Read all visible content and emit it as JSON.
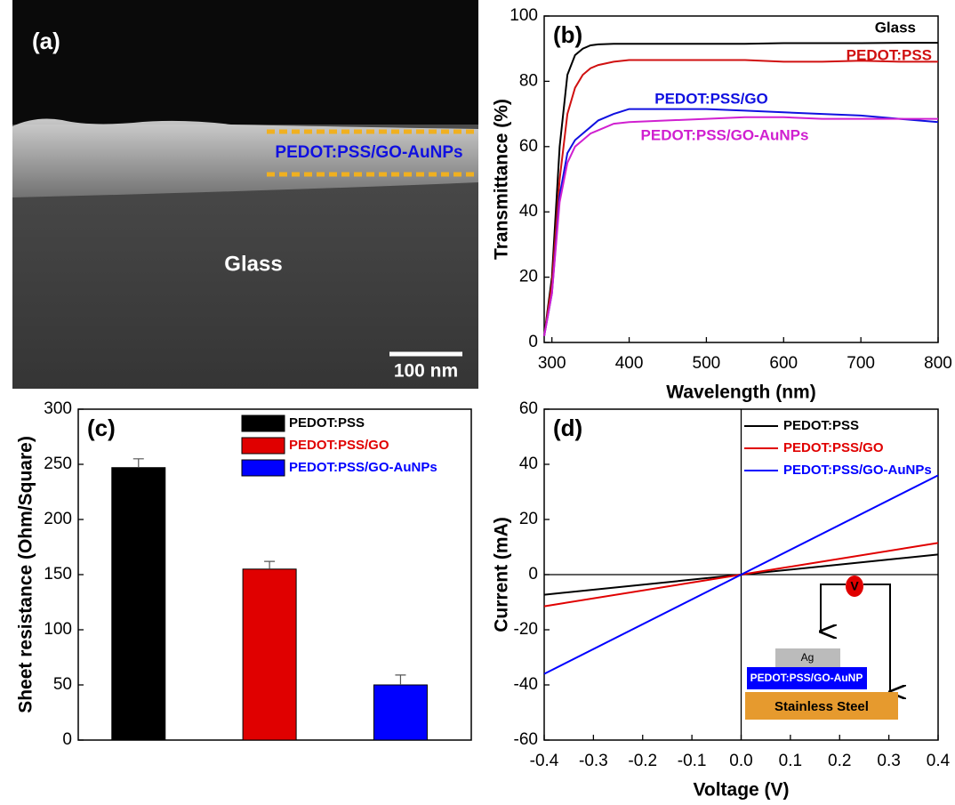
{
  "chart_data": [
    {
      "type": "image",
      "label": "(a)",
      "annotations": [
        {
          "text": "PEDOT:PSS/GO-AuNPs",
          "color": "#1010e0"
        },
        {
          "text": "Glass",
          "color": "#ffffff"
        }
      ],
      "scale_bar": "100 nm"
    },
    {
      "type": "line",
      "label": "(b)",
      "xlabel": "Wavelength (nm)",
      "ylabel": "Transmittance (%)",
      "xlim": [
        290,
        800
      ],
      "ylim": [
        0,
        100
      ],
      "xticks": [
        300,
        400,
        500,
        600,
        700,
        800
      ],
      "yticks": [
        0,
        20,
        40,
        60,
        80,
        100
      ],
      "x": [
        290,
        300,
        310,
        320,
        330,
        340,
        350,
        360,
        380,
        400,
        450,
        500,
        550,
        600,
        650,
        700,
        750,
        800
      ],
      "series": [
        {
          "name": "Glass",
          "color": "#000000",
          "values": [
            2,
            20,
            60,
            82,
            88,
            90,
            91,
            91.3,
            91.5,
            91.5,
            91.5,
            91.5,
            91.5,
            91.7,
            91.7,
            91.7,
            91.8,
            91.8
          ]
        },
        {
          "name": "PEDOT:PSS",
          "color": "#d01010",
          "values": [
            2,
            18,
            50,
            70,
            78,
            82,
            84,
            85,
            86,
            86.5,
            86.5,
            86.5,
            86.5,
            86,
            86,
            86.3,
            86,
            86
          ]
        },
        {
          "name": "PEDOT:PSS/GO",
          "color": "#1010e0",
          "values": [
            2,
            15,
            45,
            58,
            62,
            64,
            66,
            68,
            70,
            71.5,
            71.5,
            71.5,
            71,
            70.5,
            70,
            69.5,
            68.5,
            67.5
          ]
        },
        {
          "name": "PEDOT:PSS/GO-AuNPs",
          "color": "#d020d0",
          "values": [
            2,
            15,
            43,
            55,
            60,
            62,
            64,
            65,
            67,
            67.5,
            68,
            68.5,
            69,
            69,
            68.5,
            68.5,
            68.5,
            68.5
          ]
        }
      ]
    },
    {
      "type": "bar",
      "label": "(c)",
      "ylabel": "Sheet resistance (Ohm/Square)",
      "ylim": [
        0,
        300
      ],
      "yticks": [
        0,
        50,
        100,
        150,
        200,
        250,
        300
      ],
      "categories": [
        "PEDOT:PSS",
        "PEDOT:PSS/GO",
        "PEDOT:PSS/GO-AuNPs"
      ],
      "values": [
        247,
        155,
        50
      ],
      "errors": [
        8,
        7,
        9
      ],
      "colors": [
        "#000000",
        "#e00000",
        "#0000ff"
      ]
    },
    {
      "type": "line",
      "label": "(d)",
      "xlabel": "Voltage (V)",
      "ylabel": "Current (mA)",
      "xlim": [
        -0.4,
        0.4
      ],
      "ylim": [
        -60,
        60
      ],
      "xticks": [
        -0.4,
        -0.3,
        -0.2,
        -0.1,
        {
          "value": 0,
          "label": "0.0"
        },
        0.1,
        0.2,
        0.3,
        0.4
      ],
      "yticks": [
        -60,
        -40,
        -20,
        0,
        20,
        40,
        60
      ],
      "x": [
        -0.4,
        0,
        0.4
      ],
      "series": [
        {
          "name": "PEDOT:PSS",
          "color": "#000000",
          "values": [
            -7.3,
            0,
            7.3
          ]
        },
        {
          "name": "PEDOT:PSS/GO",
          "color": "#e00000",
          "values": [
            -11.5,
            0,
            11.5
          ]
        },
        {
          "name": "PEDOT:PSS/GO-AuNPs",
          "color": "#0000ff",
          "values": [
            -36,
            0,
            36
          ]
        }
      ],
      "inset": {
        "meter": "V",
        "electrode": "Ag",
        "film": "PEDOT:PSS/GO-AuNP",
        "substrate": "Stainless Steel"
      }
    }
  ]
}
